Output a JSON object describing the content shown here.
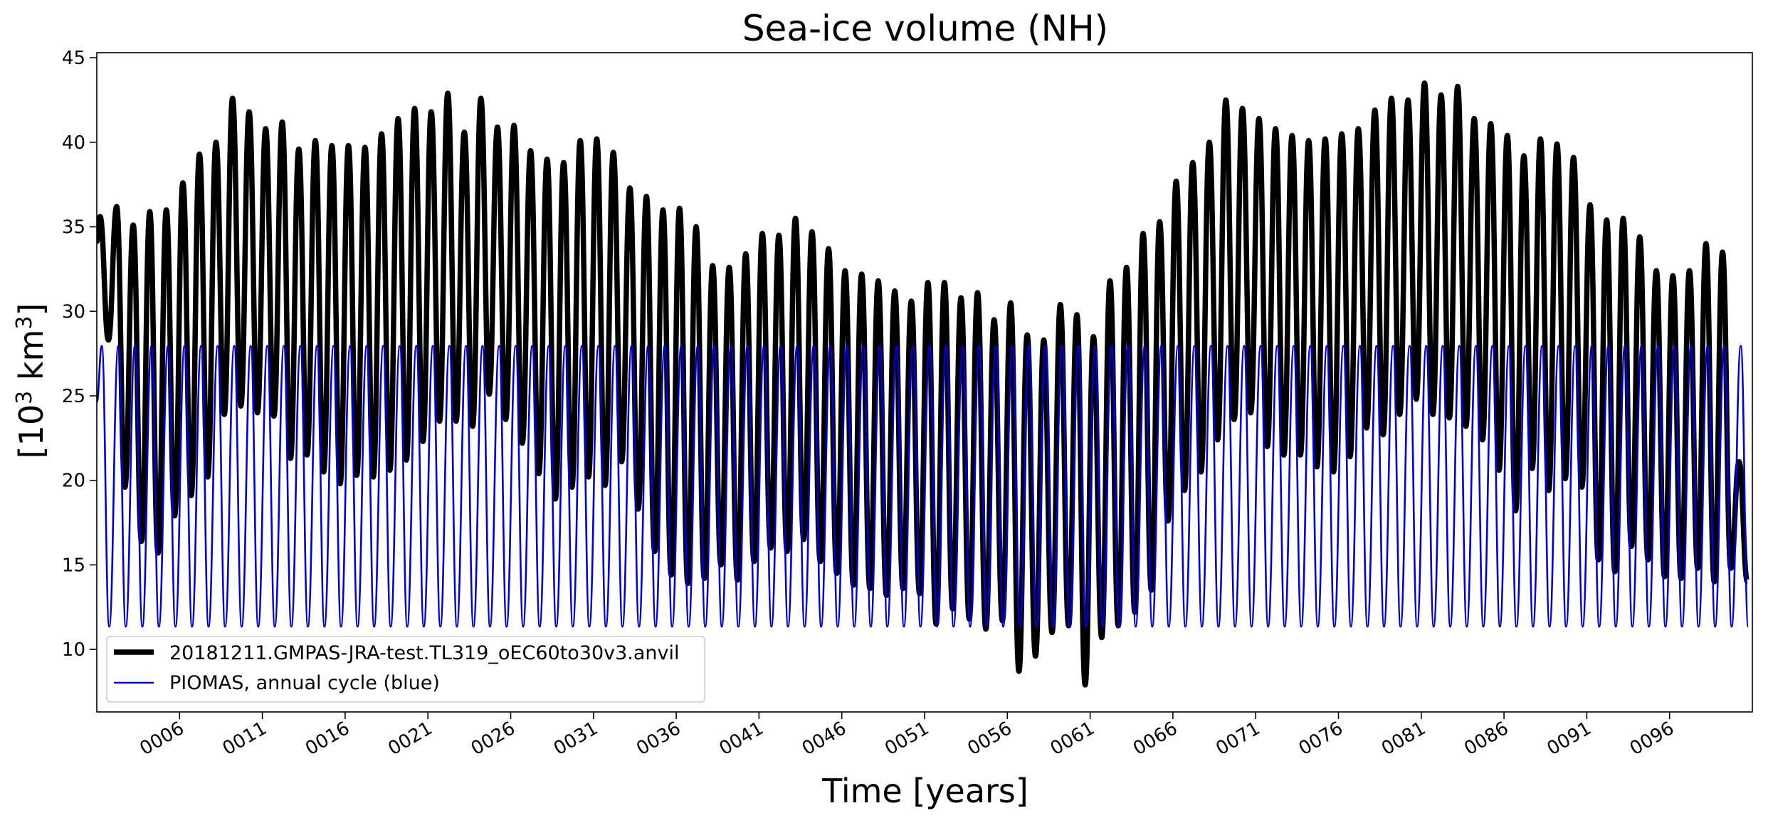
{
  "chart_data": {
    "type": "line",
    "title": "Sea-ice volume (NH)",
    "xlabel": "Time [years]",
    "ylabel": {
      "base": "[10",
      "exp1": "3",
      "mid": " km",
      "exp2": "3",
      "end": "]"
    },
    "xlim": [
      1,
      101
    ],
    "ylim": [
      6.3,
      45.3
    ],
    "grid": false,
    "legend_position": "lower left",
    "x_ticks": [
      6,
      11,
      16,
      21,
      26,
      31,
      36,
      41,
      46,
      51,
      56,
      61,
      66,
      71,
      76,
      81,
      86,
      91,
      96
    ],
    "x_tick_labels": [
      "0006",
      "0011",
      "0016",
      "0021",
      "0026",
      "0031",
      "0036",
      "0041",
      "0046",
      "0051",
      "0056",
      "0061",
      "0066",
      "0071",
      "0076",
      "0081",
      "0086",
      "0091",
      "0096"
    ],
    "y_ticks": [
      10,
      15,
      20,
      25,
      30,
      35,
      40,
      45
    ],
    "y_tick_labels": [
      "10",
      "15",
      "20",
      "25",
      "30",
      "35",
      "40",
      "45"
    ],
    "series": [
      {
        "name": "20181211.GMPAS-JRA-test.TL319_oEC60to30v3.anvil",
        "color": "#000000",
        "annual_max": [
          35.6,
          36.2,
          35.1,
          35.9,
          36.0,
          37.6,
          39.3,
          40.0,
          42.6,
          41.8,
          40.8,
          41.2,
          39.6,
          40.1,
          39.8,
          39.8,
          39.7,
          40.5,
          41.4,
          42.0,
          41.8,
          42.9,
          40.6,
          42.6,
          40.9,
          41.0,
          39.5,
          39.0,
          38.8,
          40.1,
          40.2,
          39.4,
          37.3,
          36.8,
          36.0,
          36.1,
          35.0,
          32.7,
          32.6,
          33.4,
          34.6,
          34.5,
          35.5,
          34.7,
          33.7,
          32.4,
          32.2,
          31.8,
          31.2,
          30.6,
          31.7,
          31.7,
          30.8,
          31.1,
          29.5,
          30.5,
          28.6,
          28.3,
          30.4,
          29.8,
          28.5,
          31.8,
          32.6,
          34.6,
          35.3,
          37.7,
          38.8,
          40.0,
          42.5,
          42.0,
          41.4,
          40.8,
          40.4,
          40.1,
          40.2,
          40.5,
          40.8,
          41.9,
          42.6,
          42.5,
          43.5,
          42.8,
          43.3,
          41.4,
          41.1,
          40.4,
          39.2,
          40.2,
          39.9,
          39.1,
          36.3,
          35.4,
          35.5,
          34.4,
          32.4,
          32.1,
          32.4,
          34.0,
          33.5,
          21.1
        ],
        "annual_min": [
          28.3,
          19.6,
          16.4,
          15.7,
          17.9,
          19.1,
          20.2,
          23.9,
          24.4,
          24.0,
          23.8,
          21.3,
          21.5,
          20.5,
          19.8,
          20.3,
          20.2,
          20.6,
          21.2,
          22.3,
          23.5,
          23.5,
          23.2,
          25.1,
          23.6,
          22.2,
          20.4,
          18.9,
          19.6,
          20.2,
          19.7,
          21.1,
          18.3,
          15.8,
          14.4,
          13.9,
          14.2,
          15.0,
          14.1,
          15.2,
          16.0,
          15.8,
          16.5,
          15.2,
          14.5,
          13.8,
          13.6,
          13.2,
          13.6,
          13.3,
          11.5,
          12.4,
          11.8,
          11.2,
          11.7,
          8.7,
          9.6,
          11.0,
          11.4,
          7.9,
          10.7,
          11.4,
          12.2,
          13.5,
          17.6,
          19.4,
          20.5,
          22.4,
          23.6,
          24.0,
          22.0,
          21.5,
          21.5,
          20.8,
          20.5,
          21.4,
          23.1,
          22.7,
          23.9,
          24.8,
          23.9,
          23.7,
          23.2,
          22.4,
          20.6,
          18.2,
          20.7,
          19.4,
          20.1,
          19.6,
          15.3,
          14.6,
          16.1,
          15.3,
          14.3,
          14.2,
          14.8,
          14.0,
          14.8,
          14.0
        ]
      },
      {
        "name": "PIOMAS, annual cycle (blue)",
        "color": "#0000dd",
        "annual_max": 27.95,
        "annual_min": 11.35
      }
    ]
  }
}
